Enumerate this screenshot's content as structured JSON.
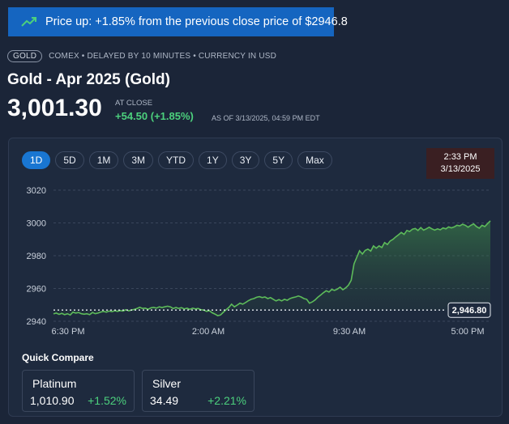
{
  "banner": {
    "text": "Price up: +1.85% from the previous close price of $2946.8"
  },
  "meta": {
    "badge": "GOLD",
    "info": "COMEX • DELAYED BY 10 MINUTES • CURRENCY IN USD"
  },
  "header": {
    "title": "Gold - Apr 2025 (Gold)",
    "price": "3,001.30",
    "at_close": "AT CLOSE",
    "change": "+54.50 (+1.85%)",
    "as_of": "AS OF 3/13/2025, 04:59 PM EDT"
  },
  "ranges": [
    "1D",
    "5D",
    "1M",
    "3M",
    "YTD",
    "1Y",
    "3Y",
    "5Y",
    "Max"
  ],
  "active_range": "1D",
  "tooltip": {
    "time": "2:33 PM",
    "date": "3/13/2025"
  },
  "colors": {
    "accent": "#1976d2",
    "up": "#4cd07d",
    "line": "#5dbb5a"
  },
  "chart_data": {
    "type": "area",
    "y_ticks": [
      "3020",
      "3000",
      "2980",
      "2960",
      "2940"
    ],
    "x_ticks": [
      "6:30 PM",
      "2:00 AM",
      "9:30 AM",
      "5:00 PM"
    ],
    "ylim": [
      2939,
      3022
    ],
    "prev_close": 2946.8,
    "prev_close_label": "2,946.80",
    "grid": true,
    "series": [
      {
        "values": [
          2944.5,
          2945,
          2944.2,
          2944.8,
          2944,
          2944.6,
          2943.8,
          2945.5,
          2945,
          2945.3,
          2944.6,
          2944.3,
          2944.6,
          2944,
          2945.3,
          2944.6,
          2945,
          2945.6,
          2946,
          2945.5,
          2946.2,
          2945.8,
          2946.4,
          2946,
          2946.5,
          2946.2,
          2947,
          2946.3,
          2946.8,
          2947.2,
          2947.8,
          2948.5,
          2947.8,
          2948,
          2947.3,
          2948.2,
          2948.5,
          2948,
          2948.8,
          2948.4,
          2948.8,
          2949.2,
          2948.8,
          2947.8,
          2948.4,
          2947.8,
          2948.3,
          2947.5,
          2948,
          2947.2,
          2948,
          2947.5,
          2947.8,
          2947,
          2946.8,
          2946,
          2946.4,
          2945.2,
          2944.4,
          2943.4,
          2943.8,
          2945.4,
          2947,
          2948.4,
          2950.4,
          2948.8,
          2949.8,
          2951,
          2950.4,
          2951.4,
          2952.5,
          2953.4,
          2953.8,
          2954.6,
          2955,
          2954.4,
          2954.8,
          2953.8,
          2954.4,
          2953.4,
          2952.4,
          2953.2,
          2952.4,
          2953.4,
          2952.8,
          2953.8,
          2954.4,
          2954.8,
          2955.4,
          2954.8,
          2953.8,
          2953.4,
          2951,
          2951.8,
          2953,
          2954.6,
          2956,
          2957.4,
          2958.6,
          2957.8,
          2959.4,
          2958.8,
          2959.6,
          2960.8,
          2959.2,
          2960.4,
          2962,
          2965,
          2975,
          2979,
          2983,
          2981,
          2983.2,
          2984,
          2982.8,
          2986,
          2984.6,
          2986,
          2985,
          2988,
          2986.8,
          2989,
          2990,
          2991.5,
          2992.8,
          2994.2,
          2993,
          2995.4,
          2994.8,
          2996.2,
          2996.6,
          2995.4,
          2997.2,
          2995.6,
          2996.4,
          2997.4,
          2996.4,
          2995.6,
          2996.4,
          2995.8,
          2997,
          2996.4,
          2997.6,
          2997,
          2997.6,
          2998.6,
          2998.2,
          2999.2,
          2998.6,
          2997.4,
          2998.6,
          2999.4,
          2997.8,
          2996.8,
          2998.6,
          2997.8,
          2999.6,
          3001.3
        ]
      }
    ]
  },
  "quick_compare": {
    "title": "Quick Compare",
    "items": [
      {
        "name": "Platinum",
        "value": "1,010.90",
        "change": "+1.52%"
      },
      {
        "name": "Silver",
        "value": "34.49",
        "change": "+2.21%"
      }
    ]
  }
}
